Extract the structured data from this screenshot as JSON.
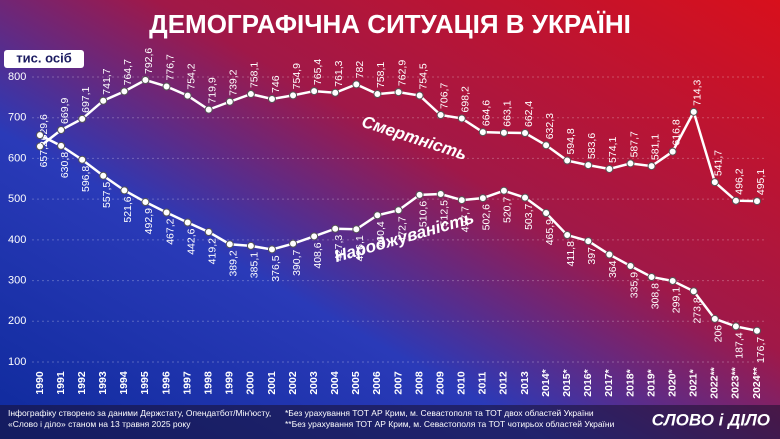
{
  "chart_data": {
    "type": "line",
    "title": "ДЕМОГРАФІЧНА СИТУАЦІЯ В УКРАЇНІ",
    "y_label": "тис. осіб",
    "categories": [
      "1990",
      "1991",
      "1992",
      "1993",
      "1994",
      "1995",
      "1996",
      "1997",
      "1998",
      "1999",
      "2000",
      "2001",
      "2002",
      "2003",
      "2004",
      "2005",
      "2006",
      "2007",
      "2008",
      "2009",
      "2010",
      "2011",
      "2012",
      "2013",
      "2014*",
      "2015*",
      "2016*",
      "2017*",
      "2018*",
      "2019*",
      "2020*",
      "2021*",
      "2022**",
      "2023**",
      "2024**"
    ],
    "series": [
      {
        "name": "Смертність",
        "color": "#ffffff",
        "values": [
          629.6,
          669.9,
          697.1,
          741.7,
          764.7,
          792.6,
          776.7,
          754.2,
          719.9,
          739.2,
          758.1,
          746,
          754.9,
          765.4,
          761.3,
          782,
          758.1,
          762.9,
          754.5,
          706.7,
          698.2,
          664.6,
          663.1,
          662.4,
          632.3,
          594.8,
          583.6,
          574.1,
          587.7,
          581.1,
          616.8,
          714.3,
          541.7,
          496.2,
          495.1
        ],
        "value_labels": [
          "629,6",
          "669,9",
          "697,1",
          "741,7",
          "764,7",
          "792,6",
          "776,7",
          "754,2",
          "719,9",
          "739,2",
          "758,1",
          "746",
          "754,9",
          "765,4",
          "761,3",
          "782",
          "758,1",
          "762,9",
          "754,5",
          "706,7",
          "698,2",
          "664,6",
          "663,1",
          "662,4",
          "632,3",
          "594,8",
          "583,6",
          "574,1",
          "587,7",
          "581,1",
          "616,8",
          "714,3",
          "541,7",
          "496,2",
          "495,1"
        ]
      },
      {
        "name": "Народжуваність",
        "color": "#ffffff",
        "values": [
          657.2,
          630.8,
          596.8,
          557.5,
          521.6,
          492.9,
          467.2,
          442.6,
          419.2,
          389.2,
          385.1,
          376.5,
          390.7,
          408.6,
          427.3,
          426.1,
          460.4,
          472.7,
          510.6,
          512.5,
          497.7,
          502.6,
          520.7,
          503.7,
          465.9,
          411.8,
          397,
          364,
          335.9,
          308.8,
          299.1,
          273.8,
          206,
          187.4,
          176.7
        ],
        "value_labels": [
          "657,2",
          "630,8",
          "596,8",
          "557,5",
          "521,6",
          "492,9",
          "467,2",
          "442,6",
          "419,2",
          "389,2",
          "385,1",
          "376,5",
          "390,7",
          "408,6",
          "427,3",
          "426,1",
          "460,4",
          "472,7",
          "510,6",
          "512,5",
          "497,7",
          "502,6",
          "520,7",
          "503,7",
          "465,9",
          "411,8",
          "397",
          "364",
          "335,9",
          "308,8",
          "299,1",
          "273,8",
          "206",
          "187,4",
          "176,7"
        ]
      }
    ],
    "ylim": [
      100,
      800
    ],
    "yticks": [
      100,
      200,
      300,
      400,
      500,
      600,
      700,
      800
    ],
    "notes": [
      "Інфографіку створено за даними Держстату, Опендатбот/Мін'юсту,",
      "«Слово і діло» станом на 13 травня 2025 року",
      "*Без урахування ТОТ АР Крим, м. Севастополя та ТОТ двох областей України",
      "**Без урахування ТОТ АР Крим, м. Севастополя та ТОТ чотирьох областей України"
    ],
    "logo": "СЛОВО і ДІЛО"
  }
}
